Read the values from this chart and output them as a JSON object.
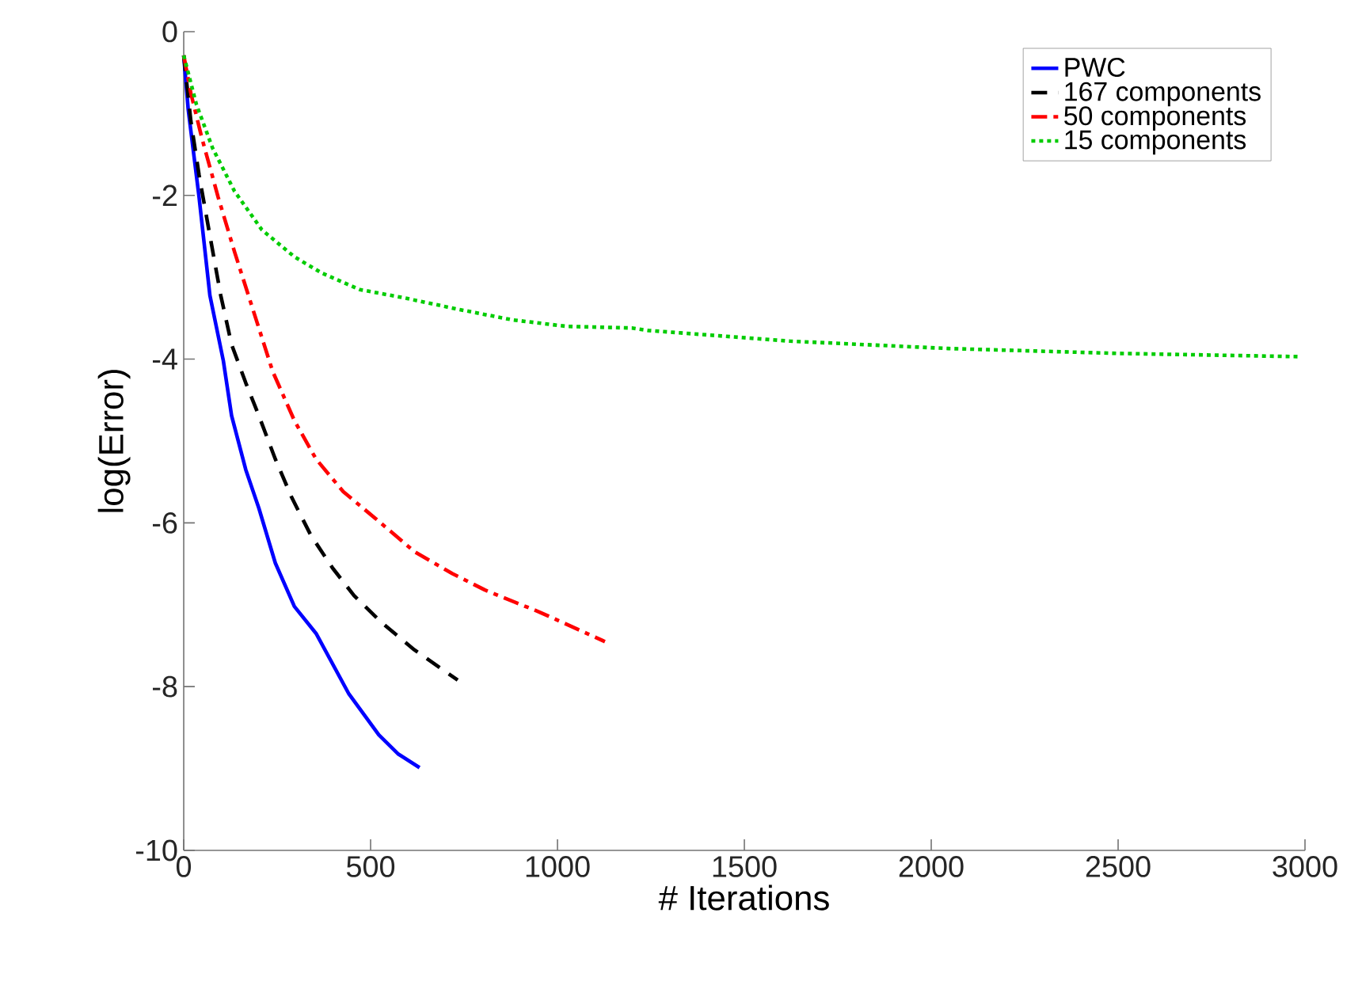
{
  "chart_data": {
    "type": "line",
    "xlabel": "# Iterations",
    "ylabel": "log(Error)",
    "xlim": [
      0,
      3000
    ],
    "ylim": [
      -10,
      0
    ],
    "xticks": [
      0,
      500,
      1000,
      1500,
      2000,
      2500,
      3000
    ],
    "yticks": [
      -10,
      -8,
      -6,
      -4,
      -2,
      0
    ],
    "legend": "top right",
    "grid": false,
    "marker": "none",
    "series": [
      {
        "name": "PWC",
        "color": "#0000ff",
        "line_style": "solid",
        "x": [
          0,
          12,
          41,
          70,
          106,
          128,
          166,
          201,
          245,
          296,
          354,
          442,
          522,
          573,
          631
        ],
        "values": [
          -0.29,
          -0.95,
          -2.02,
          -3.22,
          -4.02,
          -4.69,
          -5.35,
          -5.82,
          -6.49,
          -7.02,
          -7.35,
          -8.09,
          -8.59,
          -8.82,
          -8.99
        ]
      },
      {
        "name": "167 components",
        "color": "#000000",
        "line_style": "dashed",
        "x": [
          0,
          19,
          41,
          70,
          99,
          128,
          166,
          201,
          245,
          289,
          340,
          398,
          456,
          530,
          617,
          733
        ],
        "values": [
          -0.29,
          -1.09,
          -1.75,
          -2.49,
          -3.22,
          -3.82,
          -4.29,
          -4.69,
          -5.22,
          -5.69,
          -6.15,
          -6.55,
          -6.89,
          -7.22,
          -7.55,
          -7.92
        ]
      },
      {
        "name": "50 components",
        "color": "#ff0000",
        "line_style": "dashdot",
        "x": [
          0,
          19,
          48,
          92,
          136,
          187,
          238,
          296,
          354,
          427,
          514,
          617,
          719,
          806,
          952,
          1127
        ],
        "values": [
          -0.29,
          -0.75,
          -1.29,
          -2.02,
          -2.69,
          -3.42,
          -4.15,
          -4.75,
          -5.22,
          -5.62,
          -5.95,
          -6.35,
          -6.62,
          -6.82,
          -7.09,
          -7.45
        ]
      },
      {
        "name": "15 components",
        "color": "#00cc00",
        "line_style": "dotted",
        "x": [
          0,
          34,
          77,
          136,
          209,
          296,
          370,
          471,
          588,
          733,
          879,
          1025,
          1199,
          1243,
          1622,
          2045,
          2500,
          2989
        ],
        "values": [
          -0.29,
          -0.89,
          -1.42,
          -1.95,
          -2.42,
          -2.75,
          -2.95,
          -3.15,
          -3.25,
          -3.39,
          -3.52,
          -3.6,
          -3.62,
          -3.65,
          -3.78,
          -3.87,
          -3.93,
          -3.97
        ]
      }
    ]
  }
}
